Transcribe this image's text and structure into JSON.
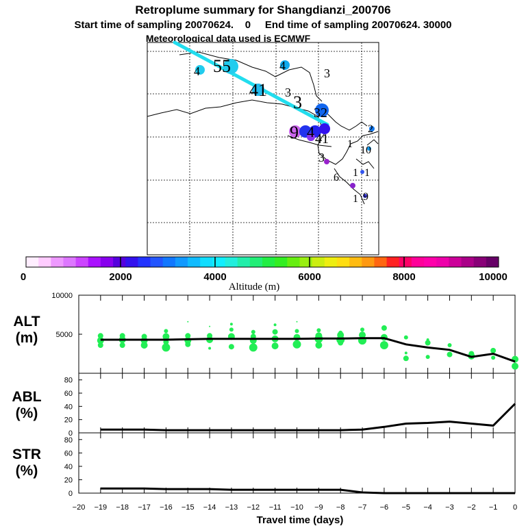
{
  "title": {
    "line1": "Retroplume summary for Shangdianzi_200706",
    "line2": "Start time of sampling 20070624.    0     End time of sampling 20070624. 30000",
    "line3": "Meteorological data used is ECMWF"
  },
  "colors": {
    "trajectory": "#22ddee",
    "alt_dots": "#22ee55",
    "line": "#000000"
  },
  "map_markers": [
    {
      "label": "4",
      "color": "#22ccee",
      "size": 7
    },
    {
      "label": "5",
      "color": "#22ccee",
      "size": 11
    },
    {
      "label": "4",
      "color": "#11aaee",
      "size": 7
    },
    {
      "label": "3",
      "color": "#000000",
      "size": 0
    },
    {
      "label": "4",
      "color": "#22bbee",
      "size": 9
    },
    {
      "label": "3",
      "color": "#000000",
      "size": 0
    },
    {
      "label": "3",
      "color": "#1166ee",
      "size": 10
    },
    {
      "label": "9",
      "color": "#cc66ee",
      "size": 9
    },
    {
      "label": "4",
      "color": "#2222ee",
      "size": 9
    },
    {
      "label": "1",
      "color": "#000000",
      "size": 0
    },
    {
      "label": "2",
      "color": "#1177ee",
      "size": 4
    },
    {
      "label": "10",
      "color": "#1199ee",
      "size": 3
    },
    {
      "label": "2",
      "color": "#9922cc",
      "size": 4
    },
    {
      "label": "6",
      "color": "#000000",
      "size": 0
    },
    {
      "label": "1",
      "color": "#3355ee",
      "size": 3
    },
    {
      "label": "1",
      "color": "#8822cc",
      "size": 4
    },
    {
      "label": "9",
      "color": "#3333cc",
      "size": 3
    }
  ],
  "map_labels": [
    "4",
    "55",
    "4",
    "3",
    "41",
    "3",
    "3",
    "32",
    "9",
    "4",
    "41",
    "2",
    "1",
    "10",
    "3",
    "6",
    "1",
    "1",
    "1",
    "9"
  ],
  "colorbar": {
    "colors": [
      "#ffeeff",
      "#ffccff",
      "#ee99ff",
      "#dd77ff",
      "#cc44ff",
      "#aa11ff",
      "#8800ee",
      "#5500dd",
      "#3311ee",
      "#2233ff",
      "#2255ff",
      "#1177ff",
      "#1199ff",
      "#11bbff",
      "#11ddff",
      "#11eeff",
      "#22eedd",
      "#22eeaa",
      "#22ee77",
      "#22ee44",
      "#33ee22",
      "#66ee11",
      "#99ee11",
      "#ccee11",
      "#eeee11",
      "#ffdd11",
      "#ffbb11",
      "#ff9911",
      "#ff6611",
      "#ff2222",
      "#ff0066",
      "#ff0099",
      "#ff00aa",
      "#ee00aa",
      "#cc0099",
      "#aa0088",
      "#880077",
      "#660066"
    ],
    "tick_labels": [
      "0",
      "2000",
      "4000",
      "6000",
      "8000",
      "10000"
    ],
    "xlabel": "Altitude (m)"
  },
  "chart_data": [
    {
      "type": "line",
      "name": "ALT",
      "ylabel_line1": "ALT",
      "ylabel_line2": "(m)",
      "ylim": [
        0,
        10000
      ],
      "yticks": [
        5000,
        10000
      ],
      "ytick_labels": [
        "5000",
        "10000"
      ],
      "x": [
        -19,
        -18,
        -17,
        -16,
        -15,
        -14,
        -13,
        -12,
        -11,
        -10,
        -9,
        -8,
        -7,
        -6,
        -5,
        -4,
        -3,
        -2,
        -1,
        0
      ],
      "values": [
        4300,
        4300,
        4300,
        4300,
        4350,
        4400,
        4400,
        4400,
        4400,
        4400,
        4450,
        4450,
        4500,
        4500,
        3700,
        3300,
        3000,
        2100,
        2500,
        1500
      ],
      "scatter_x": [
        -19,
        -19,
        -19,
        -18,
        -18,
        -18,
        -17,
        -17,
        -17,
        -16,
        -16,
        -16,
        -16,
        -15,
        -15,
        -15,
        -15,
        -14,
        -14,
        -14,
        -14,
        -13,
        -13,
        -13,
        -13,
        -12,
        -12,
        -12,
        -12,
        -11,
        -11,
        -11,
        -11,
        -10,
        -10,
        -10,
        -10,
        -9,
        -9,
        -9,
        -9,
        -8,
        -8,
        -8,
        -8,
        -7,
        -7,
        -7,
        -6,
        -6,
        -6,
        -5,
        -5,
        -5,
        -4,
        -4,
        -4,
        -3,
        -3,
        -2,
        -2,
        -1,
        -1,
        0,
        0
      ],
      "scatter_y": [
        4800,
        4200,
        3600,
        4800,
        4300,
        3600,
        4700,
        4200,
        3600,
        5400,
        4700,
        4000,
        3300,
        6600,
        4800,
        4200,
        3700,
        6000,
        4800,
        4300,
        3200,
        6300,
        5600,
        4700,
        3400,
        5300,
        4700,
        4200,
        3300,
        6200,
        5300,
        4400,
        3500,
        6600,
        5400,
        4600,
        3700,
        5500,
        4800,
        4400,
        3600,
        5200,
        4900,
        4300,
        3900,
        5600,
        4900,
        4200,
        5800,
        4600,
        3600,
        4600,
        2600,
        1900,
        4300,
        3900,
        2100,
        3600,
        2400,
        2200,
        2500,
        2900,
        2000,
        1800,
        900
      ],
      "scatter_r": [
        4,
        5,
        4,
        4,
        5,
        4,
        4,
        5,
        5,
        3,
        5,
        4,
        6,
        1,
        4,
        5,
        4,
        1,
        4,
        5,
        2,
        2,
        3,
        5,
        4,
        3,
        4,
        5,
        6,
        2,
        4,
        5,
        5,
        1,
        3,
        5,
        6,
        3,
        5,
        6,
        5,
        3,
        5,
        6,
        4,
        3,
        5,
        6,
        4,
        5,
        6,
        3,
        2,
        4,
        2,
        4,
        3,
        3,
        4,
        5,
        4,
        4,
        3,
        5,
        5
      ]
    },
    {
      "type": "line",
      "name": "ABL",
      "ylabel_line1": "ABL",
      "ylabel_line2": "(%)",
      "ylim": [
        0,
        90
      ],
      "yticks": [
        0,
        20,
        40,
        60,
        80
      ],
      "ytick_labels": [
        "0",
        "20",
        "40",
        "60",
        "80"
      ],
      "x": [
        -19,
        -18,
        -17,
        -16,
        -15,
        -14,
        -13,
        -12,
        -11,
        -10,
        -9,
        -8,
        -7,
        -6,
        -5,
        -4,
        -3,
        -2,
        -1,
        0
      ],
      "values": [
        5,
        5,
        5,
        4,
        4,
        4,
        4,
        4,
        4,
        4,
        4,
        4,
        5,
        9,
        14,
        15,
        17,
        14,
        11,
        44
      ]
    },
    {
      "type": "line",
      "name": "STR",
      "ylabel_line1": "STR",
      "ylabel_line2": "(%)",
      "ylim": [
        0,
        90
      ],
      "yticks": [
        0,
        20,
        40,
        60,
        80
      ],
      "ytick_labels": [
        "0",
        "20",
        "40",
        "60",
        "80"
      ],
      "x": [
        -19,
        -18,
        -17,
        -16,
        -15,
        -14,
        -13,
        -12,
        -11,
        -10,
        -9,
        -8,
        -7,
        -6,
        -5,
        -4,
        -3,
        -2,
        -1,
        0
      ],
      "values": [
        7,
        7,
        7,
        6,
        6,
        6,
        5,
        5,
        5,
        5,
        5,
        5,
        1,
        0,
        0,
        0,
        0,
        0,
        0,
        0
      ],
      "xlabel": "Travel time (days)",
      "xticks": [
        -20,
        -19,
        -18,
        -17,
        -16,
        -15,
        -14,
        -13,
        -12,
        -11,
        -10,
        -9,
        -8,
        -7,
        -6,
        -5,
        -4,
        -3,
        -2,
        -1,
        0
      ],
      "xtick_labels": [
        "−20",
        "−19",
        "−18",
        "−17",
        "−16",
        "−15",
        "−14",
        "−13",
        "−12",
        "−11",
        "−10",
        "−9",
        "−8",
        "−7",
        "−6",
        "−5",
        "−4",
        "−3",
        "−2",
        "−1",
        "0"
      ]
    }
  ]
}
